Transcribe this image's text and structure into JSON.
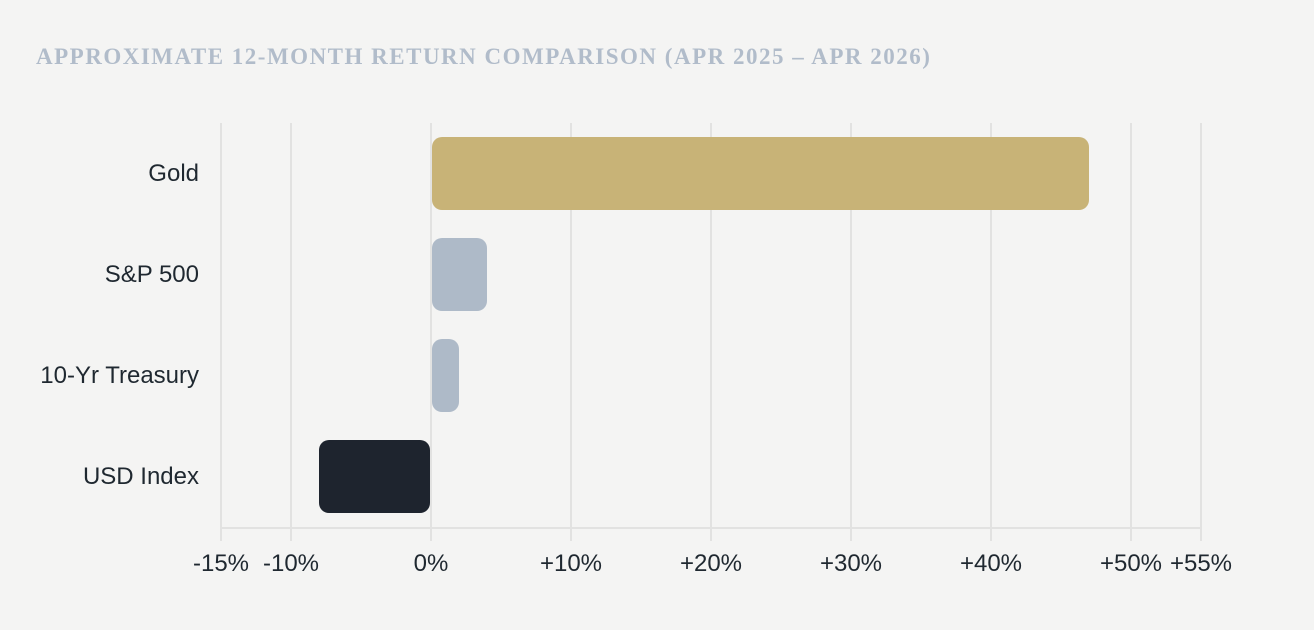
{
  "colors": {
    "background": "#f4f4f3",
    "gridline": "#e2e2e1",
    "title_text": "#b1bcca",
    "axis_text": "#1f2830",
    "gold_bar": "#c8b377",
    "slate_bar": "#aebac8",
    "dark_bar": "#1e242e"
  },
  "chart_data": {
    "type": "bar",
    "orientation": "horizontal",
    "title": "APPROXIMATE 12-MONTH RETURN COMPARISON (APR 2025 – APR 2026)",
    "categories": [
      "Gold",
      "S&P 500",
      "10-Yr Treasury",
      "USD Index"
    ],
    "values": [
      47,
      4,
      2,
      -8
    ],
    "unit": "%",
    "series": [
      {
        "name": "12-month return",
        "values": [
          47,
          4,
          2,
          -8
        ]
      }
    ],
    "bar_colors": [
      "#c8b377",
      "#aebac8",
      "#aebac8",
      "#1e242e"
    ],
    "xlabel": "",
    "ylabel": "",
    "xlim": [
      -15,
      55
    ],
    "xticks": [
      -15,
      -10,
      0,
      10,
      20,
      30,
      40,
      50,
      55
    ],
    "xtick_labels": [
      "-15%",
      "-10%",
      "0%",
      "+10%",
      "+20%",
      "+30%",
      "+40%",
      "+50%",
      "+55%"
    ],
    "grid": "vertical-only",
    "legend": "none"
  }
}
